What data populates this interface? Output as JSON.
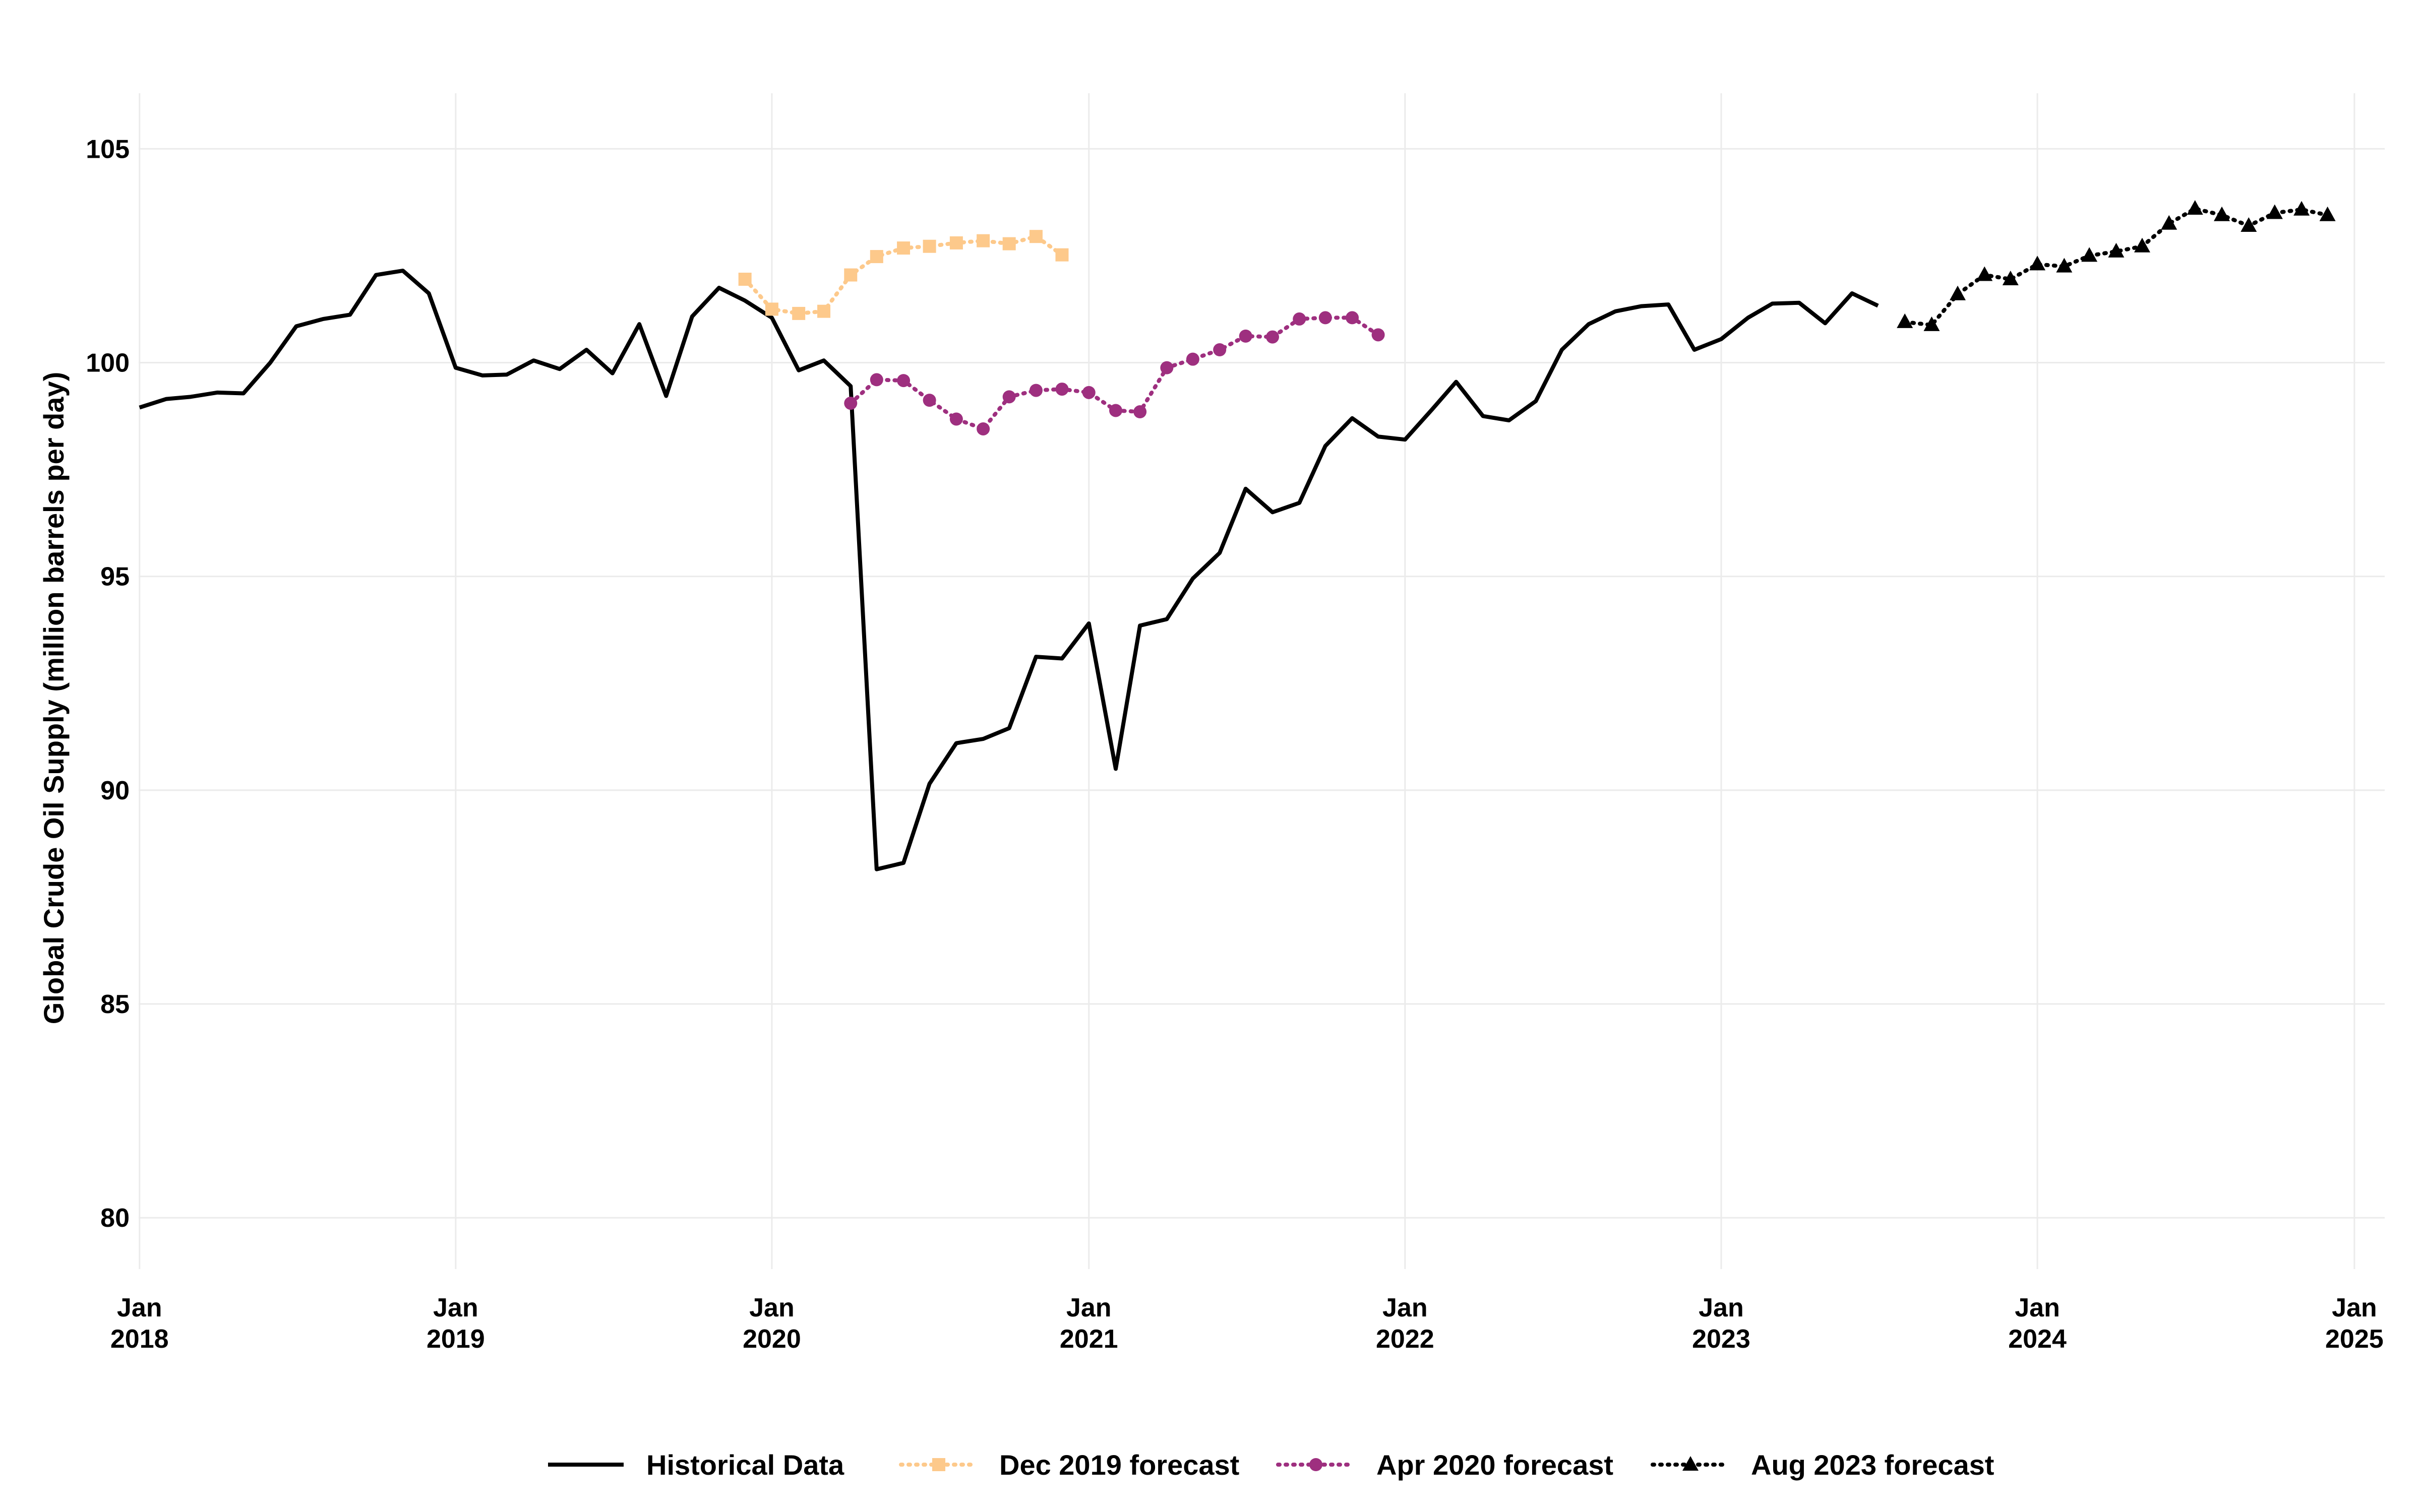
{
  "chart_data": {
    "type": "line",
    "xlabel": "",
    "ylabel": "Global Crude Oil Supply (million barrels per day)",
    "ylim": [
      78.8,
      106.3
    ],
    "xlim": [
      "2017-12-31",
      "2025-02-05"
    ],
    "y_ticks": [
      80,
      85,
      90,
      95,
      100,
      105
    ],
    "x_ticks": [
      {
        "date": "2018-01-01",
        "label": [
          "Jan",
          "2018"
        ]
      },
      {
        "date": "2019-01-01",
        "label": [
          "Jan",
          "2019"
        ]
      },
      {
        "date": "2020-01-01",
        "label": [
          "Jan",
          "2020"
        ]
      },
      {
        "date": "2021-01-01",
        "label": [
          "Jan",
          "2021"
        ]
      },
      {
        "date": "2022-01-01",
        "label": [
          "Jan",
          "2022"
        ]
      },
      {
        "date": "2023-01-01",
        "label": [
          "Jan",
          "2023"
        ]
      },
      {
        "date": "2024-01-01",
        "label": [
          "Jan",
          "2024"
        ]
      },
      {
        "date": "2025-01-01",
        "label": [
          "Jan",
          "2025"
        ]
      }
    ],
    "grid": true,
    "legend_position": "bottom",
    "series": [
      {
        "name": "Historical Data",
        "color": "#000000",
        "line": "solid",
        "marker": "none",
        "points": [
          [
            "2018-01-01",
            98.95
          ],
          [
            "2018-02-01",
            99.15
          ],
          [
            "2018-03-01",
            99.2
          ],
          [
            "2018-04-01",
            99.3
          ],
          [
            "2018-05-01",
            99.28
          ],
          [
            "2018-06-01",
            100.0
          ],
          [
            "2018-07-01",
            100.85
          ],
          [
            "2018-08-01",
            101.02
          ],
          [
            "2018-09-01",
            101.12
          ],
          [
            "2018-10-01",
            102.05
          ],
          [
            "2018-11-01",
            102.15
          ],
          [
            "2018-12-01",
            101.62
          ],
          [
            "2019-01-01",
            99.88
          ],
          [
            "2019-02-01",
            99.7
          ],
          [
            "2019-03-01",
            99.72
          ],
          [
            "2019-04-01",
            100.05
          ],
          [
            "2019-05-01",
            99.85
          ],
          [
            "2019-06-01",
            100.3
          ],
          [
            "2019-07-01",
            99.75
          ],
          [
            "2019-08-01",
            100.9
          ],
          [
            "2019-09-01",
            99.22
          ],
          [
            "2019-10-01",
            101.08
          ],
          [
            "2019-11-01",
            101.75
          ],
          [
            "2019-12-01",
            101.45
          ],
          [
            "2020-01-01",
            101.05
          ],
          [
            "2020-02-01",
            99.82
          ],
          [
            "2020-03-01",
            100.05
          ],
          [
            "2020-04-01",
            99.45
          ],
          [
            "2020-05-01",
            88.15
          ],
          [
            "2020-06-01",
            88.3
          ],
          [
            "2020-07-01",
            90.15
          ],
          [
            "2020-08-01",
            91.1
          ],
          [
            "2020-09-01",
            91.2
          ],
          [
            "2020-10-01",
            91.45
          ],
          [
            "2020-11-01",
            93.12
          ],
          [
            "2020-12-01",
            93.08
          ],
          [
            "2021-01-01",
            93.9
          ],
          [
            "2021-02-01",
            90.5
          ],
          [
            "2021-03-01",
            93.85
          ],
          [
            "2021-04-01",
            94.0
          ],
          [
            "2021-05-01",
            94.95
          ],
          [
            "2021-06-01",
            95.55
          ],
          [
            "2021-07-01",
            97.05
          ],
          [
            "2021-08-01",
            96.5
          ],
          [
            "2021-09-01",
            96.72
          ],
          [
            "2021-10-01",
            98.05
          ],
          [
            "2021-11-01",
            98.7
          ],
          [
            "2021-12-01",
            98.27
          ],
          [
            "2022-01-01",
            98.2
          ],
          [
            "2022-02-01",
            98.9
          ],
          [
            "2022-03-01",
            99.55
          ],
          [
            "2022-04-01",
            98.75
          ],
          [
            "2022-05-01",
            98.65
          ],
          [
            "2022-06-01",
            99.1
          ],
          [
            "2022-07-01",
            100.3
          ],
          [
            "2022-08-01",
            100.9
          ],
          [
            "2022-09-01",
            101.2
          ],
          [
            "2022-10-01",
            101.32
          ],
          [
            "2022-11-01",
            101.36
          ],
          [
            "2022-12-01",
            100.3
          ],
          [
            "2023-01-01",
            100.55
          ],
          [
            "2023-02-01",
            101.05
          ],
          [
            "2023-03-01",
            101.38
          ],
          [
            "2023-04-01",
            101.4
          ],
          [
            "2023-05-01",
            100.92
          ],
          [
            "2023-06-01",
            101.62
          ],
          [
            "2023-07-01",
            101.33
          ]
        ]
      },
      {
        "name": "Dec 2019 forecast",
        "color": "#fdc98b",
        "line": "dotted",
        "marker": "square",
        "points": [
          [
            "2019-12-01",
            101.95
          ],
          [
            "2020-01-01",
            101.25
          ],
          [
            "2020-02-01",
            101.15
          ],
          [
            "2020-03-01",
            101.2
          ],
          [
            "2020-04-01",
            102.05
          ],
          [
            "2020-05-01",
            102.48
          ],
          [
            "2020-06-01",
            102.68
          ],
          [
            "2020-07-01",
            102.72
          ],
          [
            "2020-08-01",
            102.8
          ],
          [
            "2020-09-01",
            102.85
          ],
          [
            "2020-10-01",
            102.78
          ],
          [
            "2020-11-01",
            102.95
          ],
          [
            "2020-12-01",
            102.52
          ]
        ]
      },
      {
        "name": "Apr 2020 forecast",
        "color": "#9e2f7f",
        "line": "dotted",
        "marker": "circle",
        "points": [
          [
            "2020-04-01",
            99.05
          ],
          [
            "2020-05-01",
            99.6
          ],
          [
            "2020-06-01",
            99.58
          ],
          [
            "2020-07-01",
            99.12
          ],
          [
            "2020-08-01",
            98.68
          ],
          [
            "2020-09-01",
            98.45
          ],
          [
            "2020-10-01",
            99.2
          ],
          [
            "2020-11-01",
            99.35
          ],
          [
            "2020-12-01",
            99.38
          ],
          [
            "2021-01-01",
            99.3
          ],
          [
            "2021-02-01",
            98.88
          ],
          [
            "2021-03-01",
            98.85
          ],
          [
            "2021-04-01",
            99.88
          ],
          [
            "2021-05-01",
            100.08
          ],
          [
            "2021-06-01",
            100.3
          ],
          [
            "2021-07-01",
            100.62
          ],
          [
            "2021-08-01",
            100.6
          ],
          [
            "2021-09-01",
            101.02
          ],
          [
            "2021-10-01",
            101.05
          ],
          [
            "2021-11-01",
            101.05
          ],
          [
            "2021-12-01",
            100.65
          ]
        ]
      },
      {
        "name": "Aug 2023 forecast",
        "color": "#000000",
        "line": "dotted",
        "marker": "triangle",
        "points": [
          [
            "2023-08-01",
            100.95
          ],
          [
            "2023-09-01",
            100.88
          ],
          [
            "2023-10-01",
            101.6
          ],
          [
            "2023-11-01",
            102.05
          ],
          [
            "2023-12-01",
            101.95
          ],
          [
            "2024-01-01",
            102.3
          ],
          [
            "2024-02-01",
            102.25
          ],
          [
            "2024-03-01",
            102.5
          ],
          [
            "2024-04-01",
            102.6
          ],
          [
            "2024-05-01",
            102.72
          ],
          [
            "2024-06-01",
            103.25
          ],
          [
            "2024-07-01",
            103.6
          ],
          [
            "2024-08-01",
            103.45
          ],
          [
            "2024-09-01",
            103.2
          ],
          [
            "2024-10-01",
            103.5
          ],
          [
            "2024-11-01",
            103.58
          ],
          [
            "2024-12-01",
            103.45
          ]
        ]
      }
    ]
  }
}
